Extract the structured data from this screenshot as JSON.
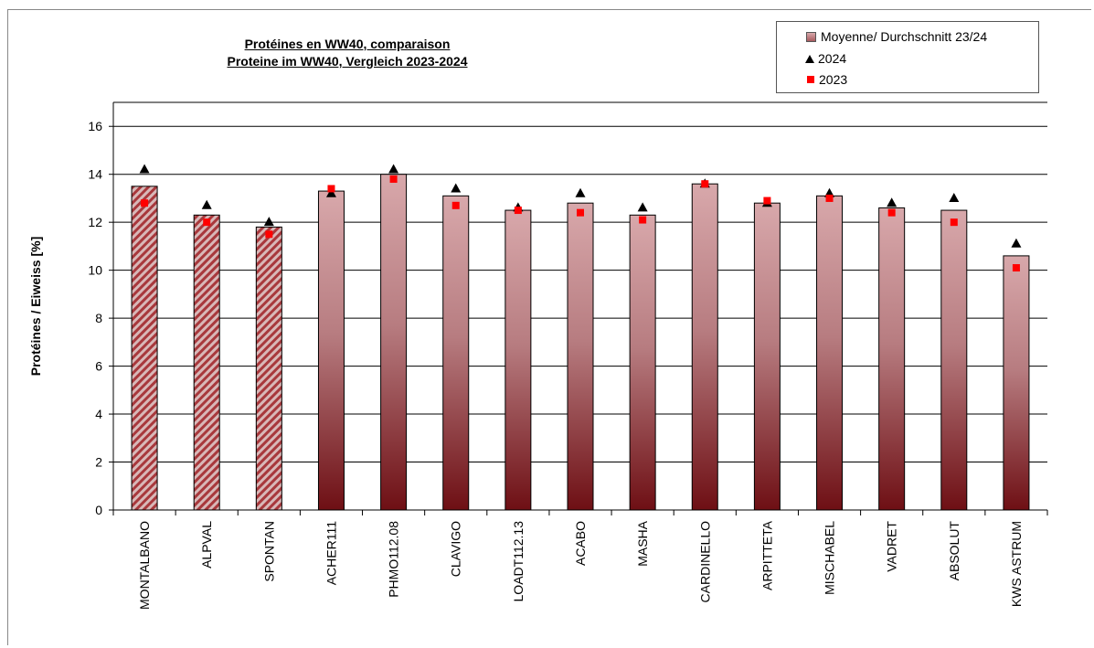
{
  "chart_data": {
    "type": "bar",
    "title": "Protéines en WW40, comparaison",
    "subtitle": "Proteine im WW40, Vergleich 2023-2024",
    "xlabel": "",
    "ylabel": "Protéines / Eiweiss [%]",
    "ylim": [
      0,
      17
    ],
    "yticks": [
      0,
      2,
      4,
      6,
      8,
      10,
      12,
      14,
      16
    ],
    "grid": true,
    "legend_position": "top-right",
    "categories": [
      "MONTALBANO",
      "ALPVAL",
      "SPONTAN",
      "ACHER111",
      "PHMO112.08",
      "CLAVIGO",
      "LOADT112.13",
      "ACABO",
      "MASHA",
      "CARDINELLO",
      "ARPITTETA",
      "MISCHABEL",
      "VADRET",
      "ABSOLUT",
      "KWS ASTRUM"
    ],
    "hatched_categories": [
      "MONTALBANO",
      "ALPVAL",
      "SPONTAN"
    ],
    "series": [
      {
        "name": "Moyenne/ Durchschnitt 23/24",
        "type": "bar",
        "values": [
          13.5,
          12.3,
          11.8,
          13.3,
          14.0,
          13.1,
          12.5,
          12.8,
          12.3,
          13.6,
          12.8,
          13.1,
          12.6,
          12.5,
          10.6
        ]
      },
      {
        "name": "2024",
        "type": "marker",
        "marker": "triangle",
        "values": [
          14.2,
          12.7,
          12.0,
          13.2,
          14.2,
          13.4,
          12.6,
          13.2,
          12.6,
          13.6,
          12.8,
          13.2,
          12.8,
          13.0,
          11.1
        ]
      },
      {
        "name": "2023",
        "type": "marker",
        "marker": "square",
        "values": [
          12.8,
          12.0,
          11.5,
          13.4,
          13.8,
          12.7,
          12.5,
          12.4,
          12.1,
          13.6,
          12.9,
          13.0,
          12.4,
          12.0,
          10.1
        ]
      }
    ],
    "colors": {
      "bar_top": "#d8a8ab",
      "bar_bottom": "#6e0f14",
      "triangle": "#000000",
      "square": "#ff0000",
      "grid": "#000000"
    }
  }
}
